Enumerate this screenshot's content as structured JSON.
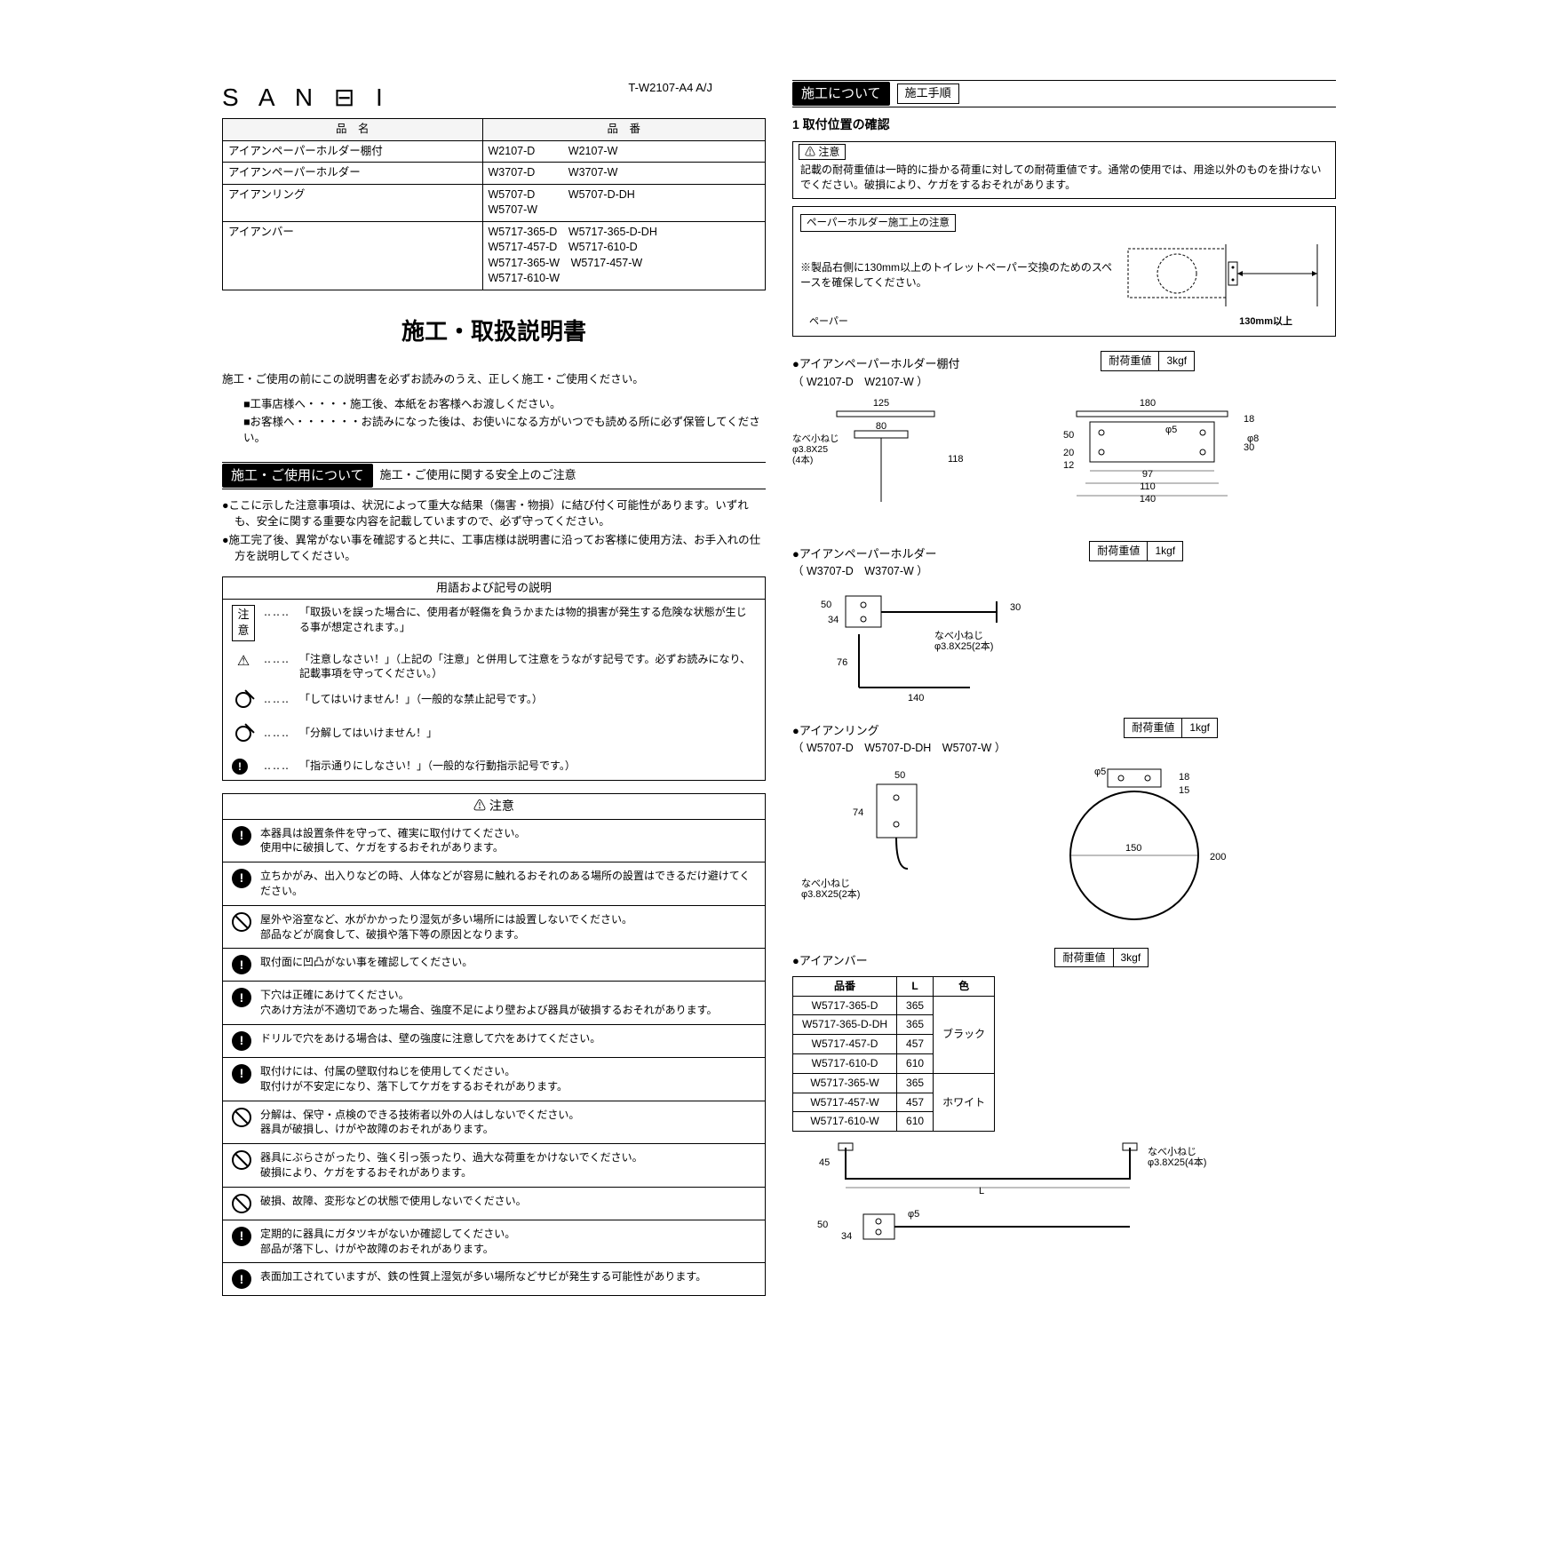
{
  "logo": "S A N ⊟ I",
  "doc_number": "T-W2107-A4  A/J",
  "product_table": {
    "headers": [
      "品　名",
      "品　番"
    ],
    "rows": [
      {
        "name": "アイアンペーパーホルダー棚付",
        "codes": "W2107-D　　　W2107-W"
      },
      {
        "name": "アイアンペーパーホルダー",
        "codes": "W3707-D　　　W3707-W"
      },
      {
        "name": "アイアンリング",
        "codes": "W5707-D　　　W5707-D-DH\nW5707-W"
      },
      {
        "name": "アイアンバー",
        "codes": "W5717-365-D　W5717-365-D-DH\nW5717-457-D　W5717-610-D\nW5717-365-W　W5717-457-W\nW5717-610-W"
      }
    ]
  },
  "title_main": "施工・取扱説明書",
  "intro": "施工・ご使用の前にこの説明書を必ずお読みのうえ、正しく施工・ご使用ください。",
  "intro_sub1": "■工事店様へ・・・・施工後、本紙をお客様へお渡しください。",
  "intro_sub2": "■お客様へ・・・・・・お読みになった後は、お使いになる方がいつでも読める所に必ず保管してください。",
  "sec1_head": "施工・ご使用について",
  "sec1_sub": "施工・ご使用に関する安全上のご注意",
  "sec1_b1": "●ここに示した注意事項は、状況によって重大な結果（傷害・物損）に結び付く可能性があります。いずれも、安全に関する重要な内容を記載していますので、必ず守ってください。",
  "sec1_b2": "●施工完了後、異常がない事を確認すると共に、工事店様は説明書に沿ってお客様に使用方法、お手入れの仕方を説明してください。",
  "symbol_title": "用語および記号の説明",
  "symbols": [
    {
      "icon": "注意",
      "text": "「取扱いを誤った場合に、使用者が軽傷を負うかまたは物的損害が発生する危険な状態が生じる事が想定されます。」"
    },
    {
      "icon": "⚠",
      "text": "「注意しなさい！」（上記の「注意」と併用して注意をうながす記号です。必ずお読みになり、記載事項を守ってください。）"
    },
    {
      "icon": "⊘",
      "text": "「してはいけません！」（一般的な禁止記号です。）"
    },
    {
      "icon": "⊘",
      "text": "「分解してはいけません！」"
    },
    {
      "icon": "●!",
      "text": "「指示通りにしなさい！」（一般的な行動指示記号です。）"
    }
  ],
  "caution_head": "⚠ 注意",
  "cautions": [
    {
      "t": "b",
      "text": "本器具は設置条件を守って、確実に取付けてください。\n使用中に破損して、ケガをするおそれがあります。"
    },
    {
      "t": "b",
      "text": "立ちかがみ、出入りなどの時、人体などが容易に触れるおそれのある場所の設置はできるだけ避けてください。"
    },
    {
      "t": "p",
      "text": "屋外や浴室など、水がかかったり湿気が多い場所には設置しないでください。\n部品などが腐食して、破損や落下等の原因となります。"
    },
    {
      "t": "b",
      "text": "取付面に凹凸がない事を確認してください。"
    },
    {
      "t": "b",
      "text": "下穴は正確にあけてください。\n穴あけ方法が不適切であった場合、強度不足により壁および器具が破損するおそれがあります。"
    },
    {
      "t": "b",
      "text": "ドリルで穴をあける場合は、壁の強度に注意して穴をあけてください。"
    },
    {
      "t": "b",
      "text": "取付けには、付属の壁取付ねじを使用してください。\n取付けが不安定になり、落下してケガをするおそれがあります。"
    },
    {
      "t": "p",
      "text": "分解は、保守・点検のできる技術者以外の人はしないでください。\n器具が破損し、けがや故障のおそれがあります。"
    },
    {
      "t": "p",
      "text": "器具にぶらさがったり、強く引っ張ったり、過大な荷重をかけないでください。\n破損により、ケガをするおそれがあります。"
    },
    {
      "t": "p",
      "text": "破損、故障、変形などの状態で使用しないでください。"
    },
    {
      "t": "b",
      "text": "定期的に器具にガタツキがないか確認してください。\n部品が落下し、けがや故障のおそれがあります。"
    },
    {
      "t": "b",
      "text": "表面加工されていますが、鉄の性質上湿気が多い場所などサビが発生する可能性があります。"
    }
  ],
  "sec2_head": "施工について",
  "sec2_sub": "施工手順",
  "step1": "1  取付位置の確認",
  "r_note_head": "⚠ 注意",
  "r_note_body": "記載の耐荷重値は一時的に掛かる荷重に対しての耐荷重値です。通常の使用では、用途以外のものを掛けないでください。破損により、ケガをするおそれがあります。",
  "paper_note_head": "ペーパーホルダー施工上の注意",
  "paper_note_text": "※製品右側に130mm以上のトイレットペーパー交換のためのスペースを確保してください。",
  "paper_dim": "130mm以上",
  "paper_label": "ペーパー",
  "p1_name": "●アイアンペーパーホルダー棚付",
  "p1_codes": "（ W2107-D　W2107-W ）",
  "p1_load_l": "耐荷重値",
  "p1_load_v": "3kgf",
  "p1_dims": {
    "a": "125",
    "b": "80",
    "c": "118",
    "d": "なべ小ねじ\nφ3.8X25\n(4本)",
    "e": "180",
    "f": "18",
    "g": "φ5",
    "h": "φ8",
    "i": "50",
    "j": "30",
    "k": "20",
    "l": "12",
    "m": "97",
    "n": "110",
    "o": "140"
  },
  "p2_name": "●アイアンペーパーホルダー",
  "p2_codes": "（ W3707-D　W3707-W ）",
  "p2_load_l": "耐荷重値",
  "p2_load_v": "1kgf",
  "p2_dims": {
    "a": "50",
    "b": "34",
    "c": "30",
    "d": "なべ小ねじ\nφ3.8X25(2本)",
    "e": "76",
    "f": "140"
  },
  "p3_name": "●アイアンリング",
  "p3_codes": "（ W5707-D　W5707-D-DH　W5707-W ）",
  "p3_load_l": "耐荷重値",
  "p3_load_v": "1kgf",
  "p3_dims": {
    "a": "50",
    "b": "74",
    "c": "なべ小ねじ\nφ3.8X25(2本)",
    "d": "φ5",
    "e": "18",
    "f": "15",
    "g": "150",
    "h": "200"
  },
  "p4_name": "●アイアンバー",
  "p4_load_l": "耐荷重値",
  "p4_load_v": "3kgf",
  "p4_table": {
    "headers": [
      "品番",
      "L",
      "色"
    ],
    "rows": [
      [
        "W5717-365-D",
        "365",
        "ブラック"
      ],
      [
        "W5717-365-D-DH",
        "365",
        "ブラック"
      ],
      [
        "W5717-457-D",
        "457",
        "ブラック"
      ],
      [
        "W5717-610-D",
        "610",
        "ブラック"
      ],
      [
        "W5717-365-W",
        "365",
        "ホワイト"
      ],
      [
        "W5717-457-W",
        "457",
        "ホワイト"
      ],
      [
        "W5717-610-W",
        "610",
        "ホワイト"
      ]
    ]
  },
  "p4_dims": {
    "a": "45",
    "b": "L",
    "c": "なべ小ねじ\nφ3.8X25(4本)",
    "d": "50",
    "e": "34",
    "f": "φ5"
  }
}
